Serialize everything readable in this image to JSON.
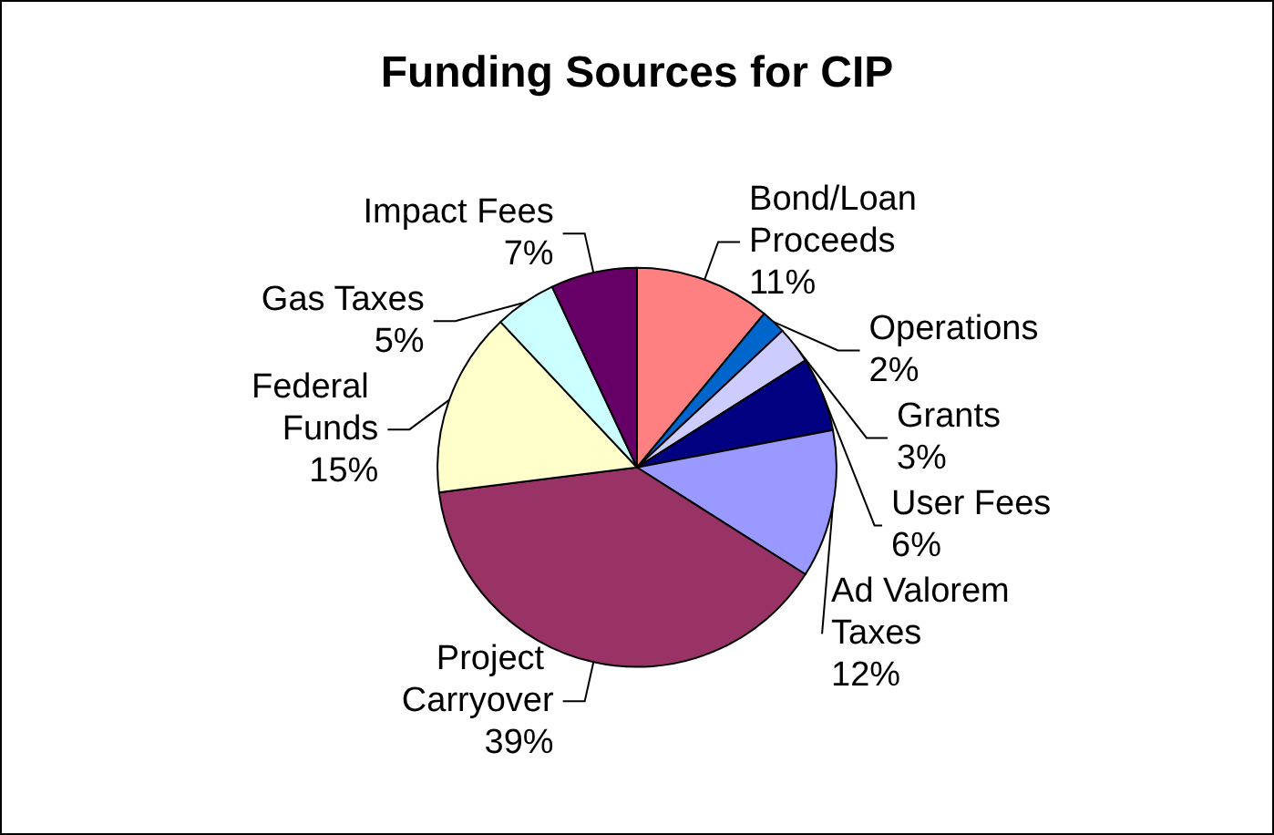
{
  "chart_data": {
    "type": "pie",
    "title": "Funding Sources for CIP",
    "categories": [
      "Bond/Loan Proceeds",
      "Operations",
      "Grants",
      "User Fees",
      "Ad Valorem Taxes",
      "Project Carryover",
      "Federal Funds",
      "Gas Taxes",
      "Impact Fees"
    ],
    "values": [
      11,
      2,
      3,
      6,
      12,
      39,
      15,
      5,
      7
    ],
    "value_labels": [
      "11%",
      "2%",
      "3%",
      "6%",
      "12%",
      "39%",
      "15%",
      "5%",
      "7%"
    ],
    "colors": [
      "#ff8080",
      "#0066cc",
      "#ccccff",
      "#000080",
      "#9999ff",
      "#993366",
      "#ffffcc",
      "#ccffff",
      "#660066"
    ],
    "legend": false
  }
}
